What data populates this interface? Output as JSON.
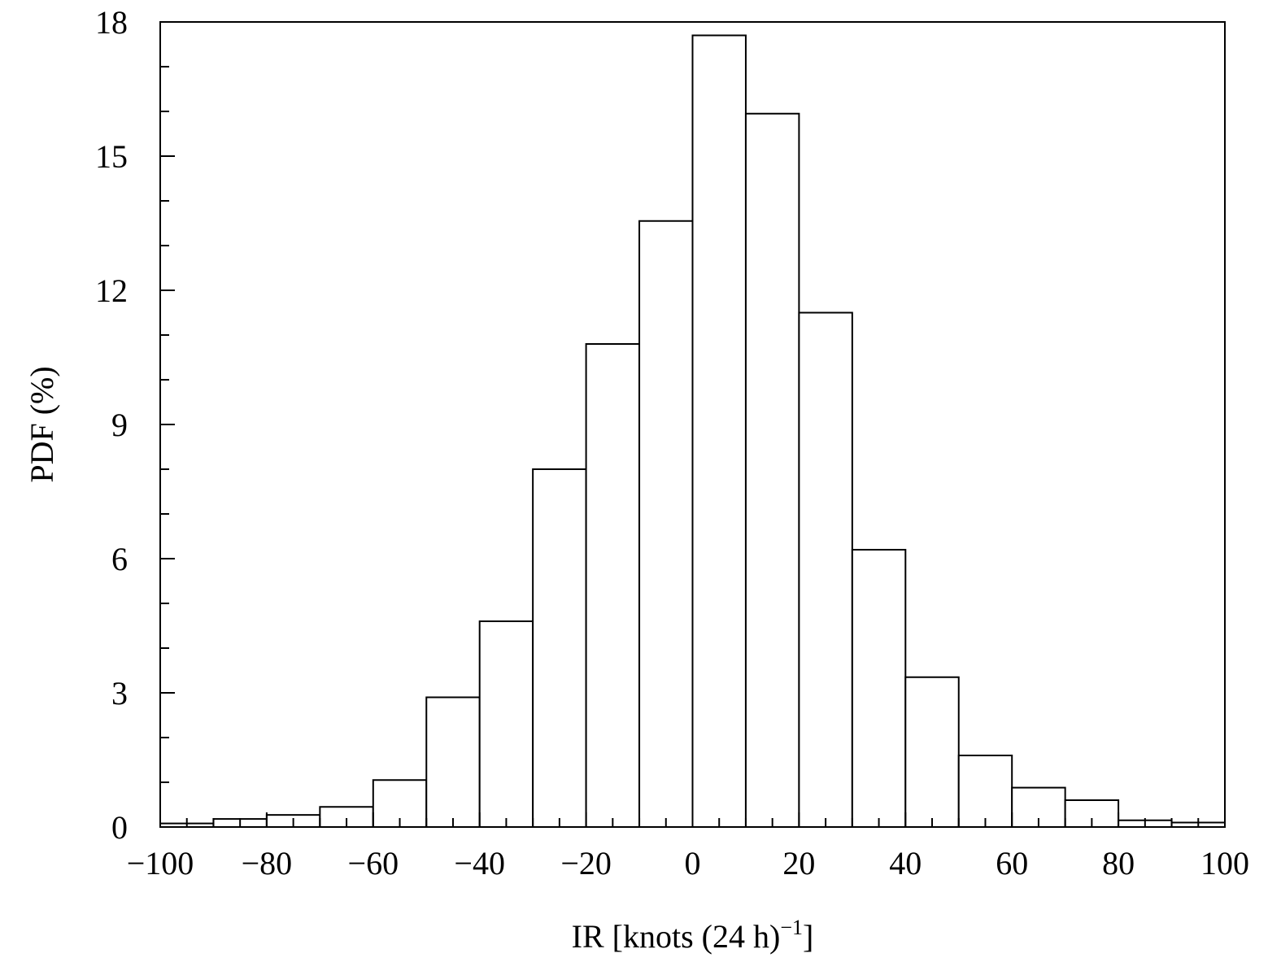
{
  "chart_data": {
    "type": "bar",
    "xlabel": "IR [knots (24 h)",
    "xlabel_superscript": "−1",
    "xlabel_suffix": "]",
    "ylabel": "PDF (%)",
    "xlim": [
      -100,
      100
    ],
    "ylim": [
      0,
      18
    ],
    "bin_width": 10,
    "x_ticks": [
      -100,
      -80,
      -60,
      -40,
      -20,
      0,
      20,
      40,
      60,
      80,
      100
    ],
    "x_tick_labels": [
      "−100",
      "−80",
      "−60",
      "−40",
      "−20",
      "0",
      "20",
      "40",
      "60",
      "80",
      "100"
    ],
    "x_minor_step": 5,
    "y_ticks": [
      0,
      3,
      6,
      9,
      12,
      15,
      18
    ],
    "y_tick_labels": [
      "0",
      "3",
      "6",
      "9",
      "12",
      "15",
      "18"
    ],
    "y_minor_step": 1,
    "bins": [
      {
        "start": -100,
        "end": -90,
        "value": 0.08
      },
      {
        "start": -90,
        "end": -80,
        "value": 0.18
      },
      {
        "start": -80,
        "end": -70,
        "value": 0.27
      },
      {
        "start": -70,
        "end": -60,
        "value": 0.45
      },
      {
        "start": -60,
        "end": -50,
        "value": 1.05
      },
      {
        "start": -50,
        "end": -40,
        "value": 2.9
      },
      {
        "start": -40,
        "end": -30,
        "value": 4.6
      },
      {
        "start": -30,
        "end": -20,
        "value": 8.0
      },
      {
        "start": -20,
        "end": -10,
        "value": 10.8
      },
      {
        "start": -10,
        "end": 0,
        "value": 13.55
      },
      {
        "start": 0,
        "end": 10,
        "value": 17.7
      },
      {
        "start": 10,
        "end": 20,
        "value": 15.95
      },
      {
        "start": 20,
        "end": 30,
        "value": 11.5
      },
      {
        "start": 30,
        "end": 40,
        "value": 6.2
      },
      {
        "start": 40,
        "end": 50,
        "value": 3.35
      },
      {
        "start": 50,
        "end": 60,
        "value": 1.6
      },
      {
        "start": 60,
        "end": 70,
        "value": 0.88
      },
      {
        "start": 70,
        "end": 80,
        "value": 0.6
      },
      {
        "start": 80,
        "end": 90,
        "value": 0.15
      },
      {
        "start": 90,
        "end": 100,
        "value": 0.1
      }
    ],
    "grid": false,
    "legend": "none"
  }
}
